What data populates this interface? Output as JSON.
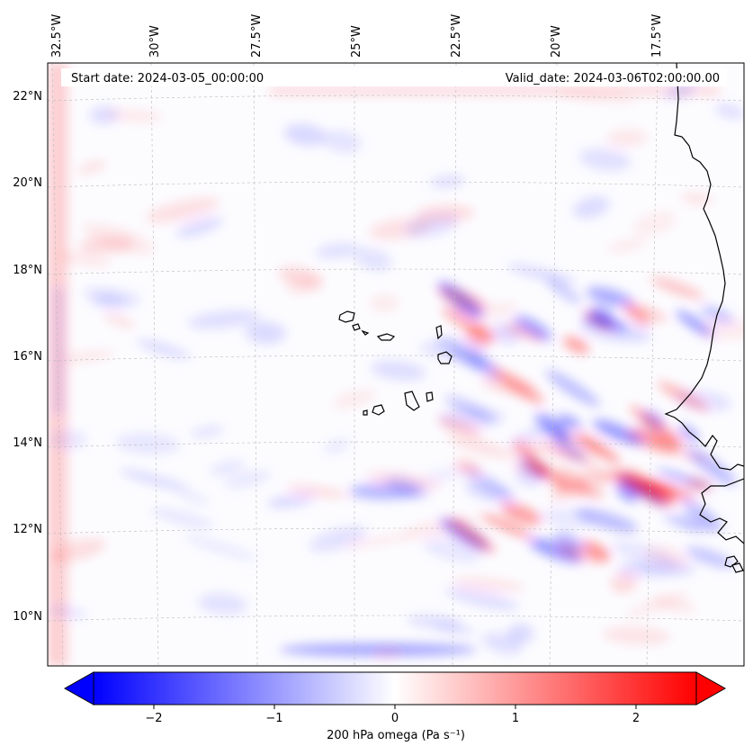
{
  "map": {
    "start_date_label": "Start date: 2024-03-05_00:00:00",
    "valid_date_label": "Valid_date: 2024-03-06T02:00:00.00",
    "longitude_labels": [
      "32.5°W",
      "30°W",
      "27.5°W",
      "25°W",
      "22.5°W",
      "20°W",
      "17.5°W"
    ],
    "latitude_labels": [
      "22°N",
      "20°N",
      "18°N",
      "16°N",
      "14°N",
      "12°N",
      "10°N"
    ],
    "field": "200 hPa omega",
    "colormap": "bwr",
    "positive_color": "#ff0000",
    "negative_color": "#0000ff",
    "coastline_color": "#000000",
    "gridlines": true
  },
  "colorbar": {
    "label": "200 hPa omega (Pa s⁻¹)",
    "ticks": [
      "−2",
      "−1",
      "0",
      "1",
      "2"
    ],
    "tick_values": [
      -2,
      -1,
      0,
      1,
      2
    ],
    "range": [
      -2.5,
      2.5
    ],
    "extend": "both"
  }
}
